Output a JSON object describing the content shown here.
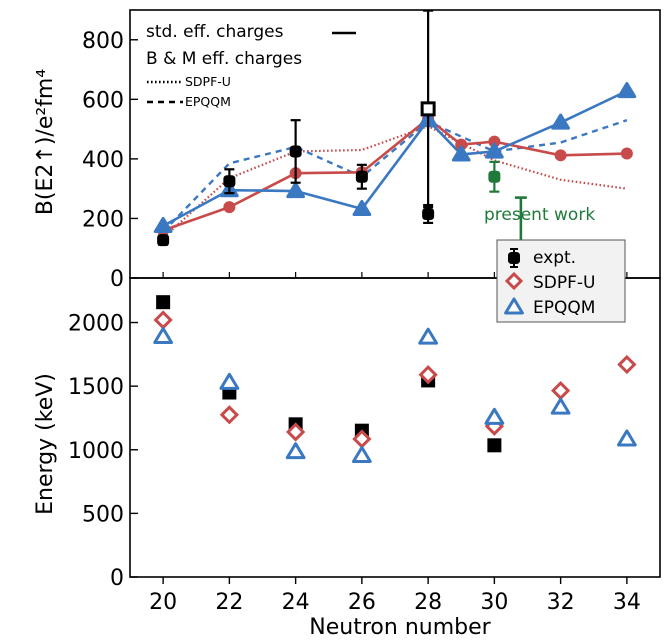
{
  "chart_data": [
    {
      "type": "line",
      "panel": "top",
      "ylabel": "B(E2↑)/e²fm⁴",
      "ylim": [
        0,
        900
      ],
      "yticks": [
        0,
        200,
        400,
        600,
        800
      ],
      "xlim": [
        19,
        35
      ],
      "grid": false,
      "series": [
        {
          "name": "expt.",
          "color": "#000000",
          "x": [
            20,
            22,
            24,
            26,
            28,
            28
          ],
          "y": [
            127,
            325,
            425,
            340,
            568,
            215
          ],
          "err": [
            15,
            40,
            105,
            40,
            330,
            30
          ]
        },
        {
          "name": "SDPF-U",
          "color": "#c94a4a",
          "x": [
            20,
            22,
            24,
            26,
            28,
            29,
            30,
            32,
            34
          ],
          "y": [
            160,
            238,
            352,
            355,
            535,
            448,
            458,
            412,
            418
          ]
        },
        {
          "name": "EPQQM",
          "color": "#3a78c2",
          "x": [
            20,
            22,
            24,
            26,
            28,
            29,
            30,
            32,
            34
          ],
          "y": [
            175,
            295,
            292,
            232,
            530,
            415,
            425,
            522,
            628
          ]
        },
        {
          "name": "SDPF-U",
          "dash": "dotted",
          "color": "#c94a4a",
          "x": [
            20,
            22,
            24,
            26,
            28,
            30,
            32,
            34
          ],
          "y": [
            135,
            335,
            425,
            430,
            510,
            395,
            330,
            300
          ]
        },
        {
          "name": "EPQQM",
          "dash": "dashed",
          "color": "#3a78c2",
          "x": [
            20,
            22,
            24,
            26,
            28,
            30,
            32,
            34
          ],
          "y": [
            155,
            385,
            440,
            340,
            525,
            425,
            455,
            530
          ]
        },
        {
          "name": "present work",
          "color": "#1f7a3a",
          "x": [
            30
          ],
          "y": [
            340
          ],
          "err": [
            50
          ]
        }
      ],
      "annotation": {
        "text": "present work",
        "bar_x": 30.8,
        "bar_ymin": 110,
        "bar_ymax": 270
      }
    },
    {
      "type": "scatter",
      "panel": "bottom",
      "xlabel": "Neutron number",
      "ylabel": "Energy (keV)",
      "ylim": [
        0,
        2350
      ],
      "yticks": [
        0,
        500,
        1000,
        1500,
        2000
      ],
      "xlim": [
        19,
        35
      ],
      "xticks": [
        20,
        22,
        24,
        26,
        28,
        30,
        32,
        34
      ],
      "grid": false,
      "series": [
        {
          "name": "expt.",
          "marker": "square",
          "color": "#000000",
          "x": [
            20,
            22,
            24,
            26,
            28,
            30
          ],
          "y": [
            2160,
            1450,
            1200,
            1150,
            1545,
            1035
          ]
        },
        {
          "name": "SDPF-U",
          "marker": "diamond",
          "color": "#c94a4a",
          "x": [
            20,
            22,
            24,
            26,
            28,
            30,
            32,
            34
          ],
          "y": [
            2020,
            1275,
            1140,
            1085,
            1590,
            1185,
            1465,
            1670
          ]
        },
        {
          "name": "EPQQM",
          "marker": "triangle",
          "color": "#3a78c2",
          "x": [
            20,
            22,
            24,
            26,
            28,
            30,
            32,
            34
          ],
          "y": [
            1890,
            1530,
            985,
            955,
            1885,
            1255,
            1335,
            1085
          ]
        }
      ]
    }
  ],
  "legend_top": {
    "std_label": "std. eff. charges",
    "bm_label": "B & M eff. charges",
    "sdpfu_label": "SDPF-U",
    "epqqm_label": "EPQQM"
  },
  "legend_box": {
    "expt_label": "expt.",
    "sdpfu_label": "SDPF-U",
    "epqqm_label": "EPQQM",
    "placement": "right, between panels"
  },
  "colors": {
    "expt": "#000000",
    "sdpfu": "#c94a4a",
    "epqqm": "#3a78c2",
    "present": "#1f7a3a"
  }
}
